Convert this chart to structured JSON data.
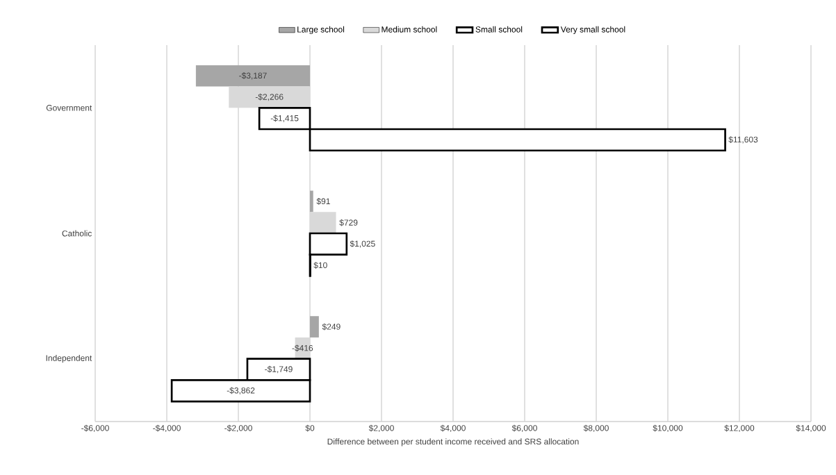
{
  "chart_data": {
    "type": "bar",
    "orientation": "horizontal",
    "xlabel": "Difference between per student income received and SRS allocation",
    "categories": [
      "Government",
      "Catholic",
      "Independent"
    ],
    "series": [
      {
        "name": "Large school",
        "color": "#a6a6a6",
        "values": [
          -3187,
          91,
          249
        ],
        "value_labels": [
          "-$3,187",
          "$91",
          "$249"
        ]
      },
      {
        "name": "Medium school",
        "color": "#d9d9d9",
        "values": [
          -2266,
          729,
          -416
        ],
        "value_labels": [
          "-$2,266",
          "$729",
          "-$416"
        ]
      },
      {
        "name": "Small school",
        "color": "#000000",
        "values": [
          -1415,
          1025,
          -1749
        ],
        "value_labels": [
          "-$1,415",
          "$1,025",
          "-$1,749"
        ]
      },
      {
        "name": "Very small school",
        "color": "#000000",
        "values": [
          11603,
          10,
          -3862
        ],
        "value_labels": [
          "$11,603",
          "$10",
          "-$3,862"
        ]
      }
    ],
    "xlim": [
      -6000,
      14000
    ],
    "xticks": [
      {
        "value": -6000,
        "label": "-$6,000"
      },
      {
        "value": -4000,
        "label": "-$4,000"
      },
      {
        "value": -2000,
        "label": "-$2,000"
      },
      {
        "value": 0,
        "label": "$0"
      },
      {
        "value": 2000,
        "label": "$2,000"
      },
      {
        "value": 4000,
        "label": "$4,000"
      },
      {
        "value": 6000,
        "label": "$6,000"
      },
      {
        "value": 8000,
        "label": "$8,000"
      },
      {
        "value": 10000,
        "label": "$10,000"
      },
      {
        "value": 12000,
        "label": "$12,000"
      },
      {
        "value": 14000,
        "label": "$14,000"
      }
    ],
    "grid": "x",
    "legend": "top"
  }
}
